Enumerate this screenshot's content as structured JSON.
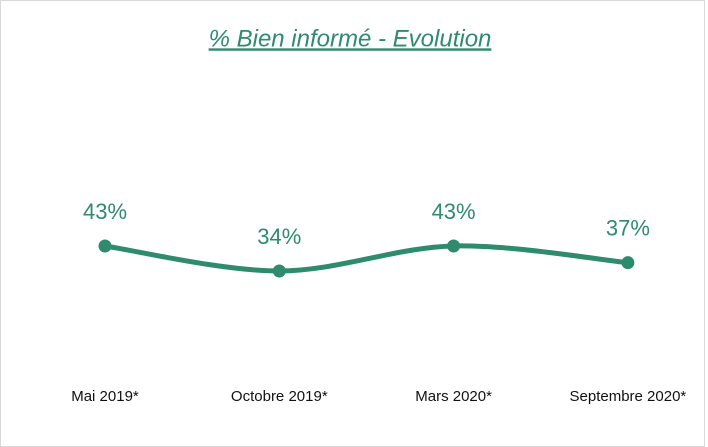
{
  "chart_data": {
    "type": "line",
    "title": "% Bien informé - Evolution",
    "categories": [
      "Mai 2019*",
      "Octobre 2019*",
      "Mars 2020*",
      "Septembre 2020*"
    ],
    "values": [
      43,
      34,
      43,
      37
    ],
    "value_labels": [
      "43%",
      "34%",
      "43%",
      "37%"
    ],
    "color": "#2e8b6b"
  }
}
